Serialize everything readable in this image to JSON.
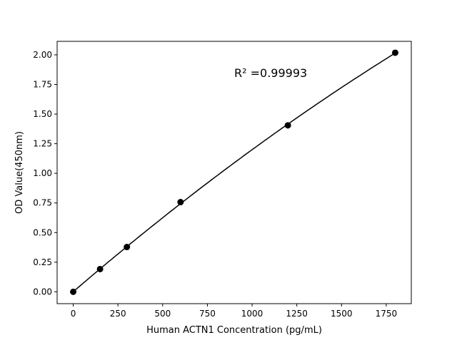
{
  "chart_data": {
    "type": "line",
    "title": "",
    "xlabel": "Human ACTN1 Concentration (pg/mL)",
    "ylabel": "OD Value(450nm)",
    "xlim": [
      -90,
      1890
    ],
    "ylim": [
      -0.1,
      2.114
    ],
    "xticks": [
      0,
      250,
      500,
      750,
      1000,
      1250,
      1500,
      1750
    ],
    "yticks": [
      "0.00",
      "0.25",
      "0.50",
      "0.75",
      "1.00",
      "1.25",
      "1.50",
      "1.75",
      "2.00"
    ],
    "grid": false,
    "series": [
      {
        "x": [
          0,
          150,
          300,
          600,
          1200,
          1800
        ],
        "y": [
          0.0,
          0.192,
          0.378,
          0.757,
          1.405,
          2.018
        ],
        "color": "#000000",
        "marker": "circle",
        "fit_line": "smooth"
      }
    ],
    "annotation": "R² =0.99993"
  }
}
